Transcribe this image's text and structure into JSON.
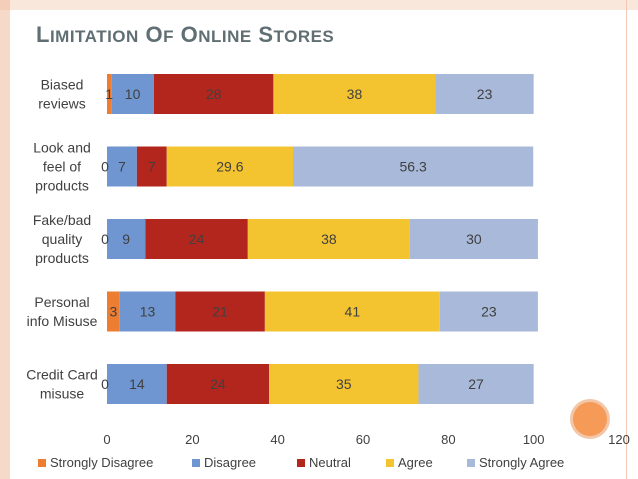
{
  "title": "Limitation of Online Stores",
  "colors": {
    "frame": "#f0b99c",
    "title": "#5f6f73",
    "accent_circle": "#f59a57"
  },
  "chart_data": {
    "type": "bar",
    "orientation": "horizontal-stacked",
    "categories": [
      "Biased reviews",
      "Look and feel of products",
      "Fake/bad quality products",
      "Personal info Misuse",
      "Credit Card misuse"
    ],
    "series": [
      {
        "name": "Strongly Disagree",
        "color": "#ed7d31",
        "values": [
          1,
          0,
          0,
          3,
          0
        ]
      },
      {
        "name": "Disagree",
        "color": "#6f96d1",
        "values": [
          10,
          7,
          9,
          13,
          14
        ]
      },
      {
        "name": "Neutral",
        "color": "#b3261e",
        "values": [
          28,
          7,
          24,
          21,
          24
        ]
      },
      {
        "name": "Agree",
        "color": "#f4c430",
        "values": [
          38,
          29.6,
          38,
          41,
          35
        ]
      },
      {
        "name": "Strongly Agree",
        "color": "#a9b9d9",
        "values": [
          23,
          56.3,
          30,
          23,
          27
        ]
      }
    ],
    "xlim": [
      0,
      120
    ],
    "xticks": [
      0,
      20,
      40,
      60,
      80,
      100,
      120
    ],
    "legend": "bottom",
    "grid": false
  }
}
